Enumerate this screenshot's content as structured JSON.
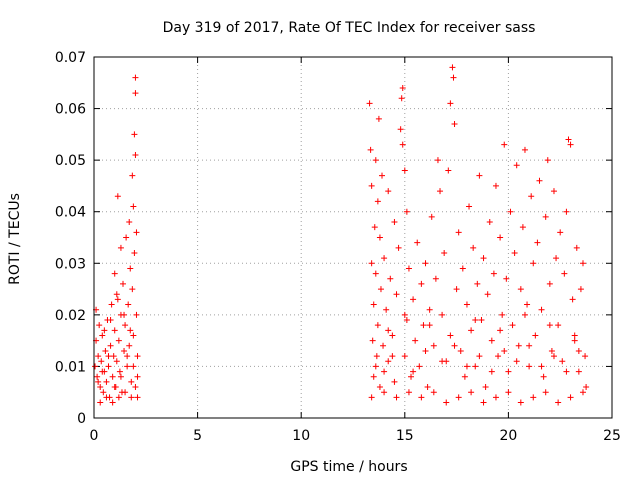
{
  "chart_data": {
    "type": "scatter",
    "title": "Day 319 of 2017, Rate Of TEC Index for receiver sass",
    "xlabel": "GPS time / hours",
    "ylabel": "ROTI / TECUs",
    "xlim": [
      0,
      25
    ],
    "ylim": [
      0,
      0.07
    ],
    "x_ticks": [
      "0",
      "5",
      "10",
      "15",
      "20",
      "25"
    ],
    "y_ticks": [
      "0",
      "0.01",
      "0.02",
      "0.03",
      "0.04",
      "0.05",
      "0.06",
      "0.07"
    ],
    "grid": true,
    "marker": "+",
    "color": "#ff0000",
    "series": [
      {
        "points": [
          [
            0.05,
            0.01
          ],
          [
            0.1,
            0.015
          ],
          [
            0.1,
            0.021
          ],
          [
            0.15,
            0.008
          ],
          [
            0.2,
            0.012
          ],
          [
            0.25,
            0.018
          ],
          [
            0.3,
            0.006
          ],
          [
            0.35,
            0.011
          ],
          [
            0.4,
            0.016
          ],
          [
            0.45,
            0.005
          ],
          [
            0.5,
            0.009
          ],
          [
            0.55,
            0.013
          ],
          [
            0.6,
            0.007
          ],
          [
            0.65,
            0.019
          ],
          [
            0.7,
            0.01
          ],
          [
            0.75,
            0.004
          ],
          [
            0.8,
            0.014
          ],
          [
            0.85,
            0.022
          ],
          [
            0.9,
            0.008
          ],
          [
            0.95,
            0.012
          ],
          [
            1.0,
            0.028
          ],
          [
            1.0,
            0.017
          ],
          [
            1.05,
            0.006
          ],
          [
            1.1,
            0.024
          ],
          [
            1.1,
            0.011
          ],
          [
            1.15,
            0.043
          ],
          [
            1.2,
            0.015
          ],
          [
            1.25,
            0.009
          ],
          [
            1.3,
            0.033
          ],
          [
            1.3,
            0.02
          ],
          [
            1.35,
            0.005
          ],
          [
            1.4,
            0.026
          ],
          [
            1.45,
            0.013
          ],
          [
            1.5,
            0.018
          ],
          [
            1.55,
            0.035
          ],
          [
            1.6,
            0.01
          ],
          [
            1.65,
            0.022
          ],
          [
            1.7,
            0.038
          ],
          [
            1.7,
            0.014
          ],
          [
            1.75,
            0.029
          ],
          [
            1.8,
            0.007
          ],
          [
            1.85,
            0.047
          ],
          [
            1.85,
            0.025
          ],
          [
            1.9,
            0.041
          ],
          [
            1.9,
            0.016
          ],
          [
            1.95,
            0.055
          ],
          [
            1.95,
            0.032
          ],
          [
            2.0,
            0.063
          ],
          [
            2.0,
            0.051
          ],
          [
            2.0,
            0.066
          ],
          [
            2.05,
            0.036
          ],
          [
            2.05,
            0.02
          ],
          [
            2.1,
            0.012
          ],
          [
            2.1,
            0.008
          ],
          [
            2.1,
            0.004
          ],
          [
            0.3,
            0.003
          ],
          [
            0.6,
            0.004
          ],
          [
            0.9,
            0.003
          ],
          [
            1.2,
            0.004
          ],
          [
            1.5,
            0.005
          ],
          [
            1.8,
            0.004
          ],
          [
            2.0,
            0.006
          ],
          [
            0.2,
            0.007
          ],
          [
            0.4,
            0.009
          ],
          [
            0.7,
            0.012
          ],
          [
            1.0,
            0.006
          ],
          [
            1.3,
            0.008
          ],
          [
            1.6,
            0.012
          ],
          [
            1.9,
            0.01
          ],
          [
            0.5,
            0.017
          ],
          [
            0.8,
            0.019
          ],
          [
            1.15,
            0.023
          ],
          [
            1.45,
            0.02
          ],
          [
            1.75,
            0.017
          ],
          [
            13.3,
            0.061
          ],
          [
            13.35,
            0.052
          ],
          [
            13.4,
            0.03
          ],
          [
            13.4,
            0.045
          ],
          [
            13.45,
            0.015
          ],
          [
            13.5,
            0.022
          ],
          [
            13.5,
            0.008
          ],
          [
            13.55,
            0.037
          ],
          [
            13.6,
            0.05
          ],
          [
            13.6,
            0.028
          ],
          [
            13.65,
            0.012
          ],
          [
            13.7,
            0.042
          ],
          [
            13.7,
            0.018
          ],
          [
            13.75,
            0.058
          ],
          [
            13.8,
            0.035
          ],
          [
            13.8,
            0.006
          ],
          [
            13.85,
            0.025
          ],
          [
            13.9,
            0.047
          ],
          [
            13.95,
            0.014
          ],
          [
            14.0,
            0.031
          ],
          [
            14.0,
            0.009
          ],
          [
            14.1,
            0.021
          ],
          [
            14.2,
            0.044
          ],
          [
            14.2,
            0.011
          ],
          [
            14.3,
            0.027
          ],
          [
            14.4,
            0.016
          ],
          [
            14.5,
            0.038
          ],
          [
            14.5,
            0.007
          ],
          [
            14.6,
            0.024
          ],
          [
            14.7,
            0.033
          ],
          [
            14.8,
            0.056
          ],
          [
            14.85,
            0.062
          ],
          [
            14.9,
            0.064
          ],
          [
            14.9,
            0.053
          ],
          [
            15.0,
            0.048
          ],
          [
            15.0,
            0.012
          ],
          [
            15.1,
            0.04
          ],
          [
            15.1,
            0.019
          ],
          [
            15.2,
            0.029
          ],
          [
            15.3,
            0.008
          ],
          [
            15.4,
            0.023
          ],
          [
            15.5,
            0.015
          ],
          [
            15.6,
            0.034
          ],
          [
            15.7,
            0.01
          ],
          [
            15.8,
            0.026
          ],
          [
            15.9,
            0.018
          ],
          [
            16.0,
            0.03
          ],
          [
            16.1,
            0.006
          ],
          [
            16.2,
            0.021
          ],
          [
            16.3,
            0.039
          ],
          [
            16.4,
            0.014
          ],
          [
            16.5,
            0.027
          ],
          [
            16.6,
            0.05
          ],
          [
            16.7,
            0.044
          ],
          [
            16.8,
            0.02
          ],
          [
            16.9,
            0.032
          ],
          [
            17.0,
            0.011
          ],
          [
            17.1,
            0.048
          ],
          [
            17.2,
            0.061
          ],
          [
            17.3,
            0.068
          ],
          [
            17.35,
            0.066
          ],
          [
            17.4,
            0.057
          ],
          [
            17.5,
            0.025
          ],
          [
            17.6,
            0.036
          ],
          [
            17.7,
            0.013
          ],
          [
            17.8,
            0.029
          ],
          [
            17.9,
            0.008
          ],
          [
            18.0,
            0.022
          ],
          [
            18.1,
            0.041
          ],
          [
            18.2,
            0.017
          ],
          [
            18.3,
            0.033
          ],
          [
            18.4,
            0.01
          ],
          [
            18.5,
            0.026
          ],
          [
            18.6,
            0.047
          ],
          [
            18.7,
            0.019
          ],
          [
            18.8,
            0.031
          ],
          [
            18.9,
            0.006
          ],
          [
            19.0,
            0.024
          ],
          [
            19.1,
            0.038
          ],
          [
            19.2,
            0.015
          ],
          [
            19.3,
            0.028
          ],
          [
            19.4,
            0.045
          ],
          [
            19.5,
            0.012
          ],
          [
            19.6,
            0.035
          ],
          [
            19.7,
            0.02
          ],
          [
            19.8,
            0.053
          ],
          [
            19.9,
            0.027
          ],
          [
            20.0,
            0.009
          ],
          [
            20.1,
            0.04
          ],
          [
            20.2,
            0.018
          ],
          [
            20.3,
            0.032
          ],
          [
            20.4,
            0.049
          ],
          [
            20.5,
            0.014
          ],
          [
            20.6,
            0.025
          ],
          [
            20.7,
            0.037
          ],
          [
            20.8,
            0.052
          ],
          [
            20.9,
            0.022
          ],
          [
            21.0,
            0.01
          ],
          [
            21.1,
            0.043
          ],
          [
            21.2,
            0.03
          ],
          [
            21.3,
            0.016
          ],
          [
            21.4,
            0.034
          ],
          [
            21.5,
            0.046
          ],
          [
            21.6,
            0.021
          ],
          [
            21.7,
            0.008
          ],
          [
            21.8,
            0.039
          ],
          [
            21.9,
            0.05
          ],
          [
            22.0,
            0.026
          ],
          [
            22.1,
            0.013
          ],
          [
            22.2,
            0.044
          ],
          [
            22.3,
            0.031
          ],
          [
            22.4,
            0.018
          ],
          [
            22.5,
            0.036
          ],
          [
            22.6,
            0.011
          ],
          [
            22.7,
            0.028
          ],
          [
            22.8,
            0.04
          ],
          [
            22.9,
            0.054
          ],
          [
            23.0,
            0.053
          ],
          [
            23.1,
            0.023
          ],
          [
            23.2,
            0.015
          ],
          [
            23.3,
            0.033
          ],
          [
            23.4,
            0.009
          ],
          [
            23.5,
            0.025
          ],
          [
            23.6,
            0.03
          ],
          [
            23.7,
            0.012
          ],
          [
            23.75,
            0.006
          ],
          [
            13.4,
            0.004
          ],
          [
            14.0,
            0.005
          ],
          [
            14.6,
            0.004
          ],
          [
            15.2,
            0.005
          ],
          [
            15.8,
            0.004
          ],
          [
            16.4,
            0.005
          ],
          [
            17.0,
            0.003
          ],
          [
            17.6,
            0.004
          ],
          [
            18.2,
            0.005
          ],
          [
            18.8,
            0.003
          ],
          [
            19.4,
            0.004
          ],
          [
            20.0,
            0.005
          ],
          [
            20.6,
            0.003
          ],
          [
            21.2,
            0.004
          ],
          [
            21.8,
            0.005
          ],
          [
            22.4,
            0.003
          ],
          [
            23.0,
            0.004
          ],
          [
            23.6,
            0.005
          ],
          [
            13.6,
            0.01
          ],
          [
            14.4,
            0.012
          ],
          [
            15.4,
            0.009
          ],
          [
            16.0,
            0.013
          ],
          [
            16.8,
            0.011
          ],
          [
            17.4,
            0.014
          ],
          [
            18.0,
            0.01
          ],
          [
            18.6,
            0.012
          ],
          [
            19.2,
            0.009
          ],
          [
            19.8,
            0.013
          ],
          [
            20.4,
            0.011
          ],
          [
            21.0,
            0.014
          ],
          [
            21.6,
            0.01
          ],
          [
            22.2,
            0.012
          ],
          [
            22.8,
            0.009
          ],
          [
            23.4,
            0.013
          ],
          [
            14.2,
            0.017
          ],
          [
            15.0,
            0.02
          ],
          [
            16.2,
            0.018
          ],
          [
            17.2,
            0.016
          ],
          [
            18.4,
            0.019
          ],
          [
            19.6,
            0.017
          ],
          [
            20.8,
            0.02
          ],
          [
            22.0,
            0.018
          ],
          [
            23.2,
            0.016
          ]
        ]
      }
    ]
  }
}
